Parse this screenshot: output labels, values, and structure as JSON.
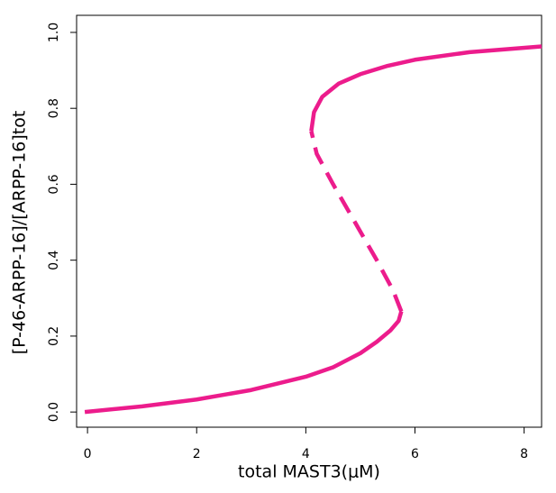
{
  "chart_data": {
    "type": "line",
    "xlabel": "total MAST3(μM)",
    "ylabel": "[P-46-ARPP-16]/[ARPP-16]tot",
    "xlim": [
      -0.2,
      8.32
    ],
    "ylim": [
      -0.04,
      1.045
    ],
    "xticks": [
      0,
      2,
      4,
      6,
      8
    ],
    "yticks": [
      {
        "value": 0,
        "label": "0.0"
      },
      0.2,
      0.4,
      0.6,
      0.8,
      {
        "value": 1,
        "label": "1.0"
      }
    ],
    "series": [
      {
        "color": "#ec1c8c",
        "style": "solid",
        "x": [
          -0.05,
          1,
          2,
          3,
          4,
          4.5,
          5,
          5.3,
          5.55,
          5.7,
          5.75
        ],
        "values": [
          0,
          0.015,
          0.033,
          0.058,
          0.093,
          0.118,
          0.155,
          0.185,
          0.215,
          0.24,
          0.265
        ]
      },
      {
        "color": "#ec1c8c",
        "style": "dashed",
        "x": [
          5.75,
          5.6,
          5.3,
          4.9,
          4.5,
          4.2,
          4.1
        ],
        "values": [
          0.265,
          0.32,
          0.4,
          0.5,
          0.6,
          0.68,
          0.74
        ]
      },
      {
        "color": "#ec1c8c",
        "style": "solid",
        "x": [
          4.1,
          4.15,
          4.3,
          4.6,
          5,
          5.5,
          6,
          7,
          8.32
        ],
        "values": [
          0.74,
          0.79,
          0.83,
          0.865,
          0.89,
          0.912,
          0.928,
          0.948,
          0.963
        ]
      }
    ]
  }
}
